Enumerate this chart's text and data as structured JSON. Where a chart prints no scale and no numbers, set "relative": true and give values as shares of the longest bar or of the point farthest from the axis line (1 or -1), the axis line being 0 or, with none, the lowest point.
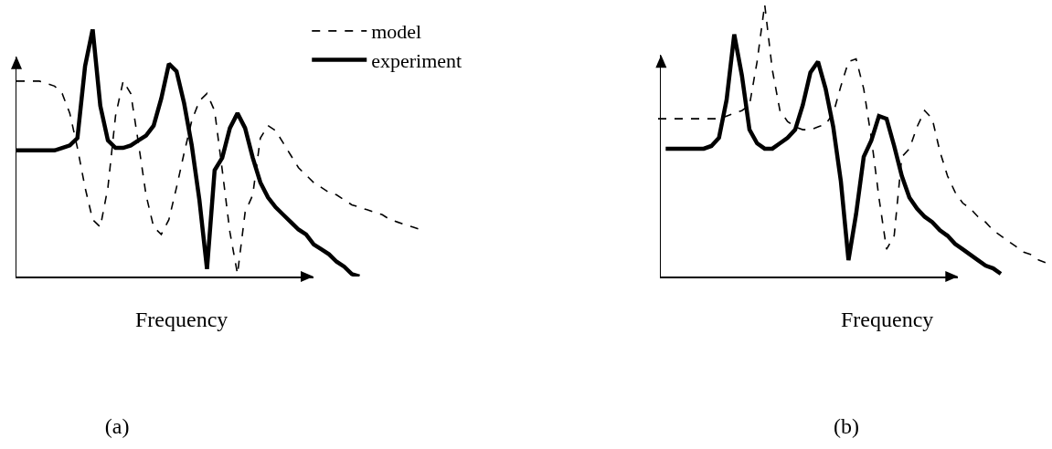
{
  "chart_data": [
    {
      "type": "line",
      "relative": true,
      "title": "(a)",
      "xlabel": "Frequency",
      "legend": "top right",
      "marker": "none",
      "categories": [
        null,
        null,
        null,
        null,
        null,
        null,
        null,
        null,
        null,
        null,
        null,
        null,
        null,
        null,
        null,
        null,
        null,
        null,
        null,
        null,
        null,
        null,
        null,
        null,
        null,
        null,
        null,
        null,
        null,
        null,
        null,
        null,
        null,
        null,
        null,
        null,
        null,
        null,
        null,
        null,
        null,
        null,
        null,
        null,
        null,
        null,
        null,
        null,
        null,
        null,
        null,
        null,
        null,
        null
      ],
      "series": [
        {
          "name": "model",
          "color": "#000000",
          "line_style": "dashed",
          "values": [
            0.79,
            0.79,
            0.79,
            0.79,
            0.78,
            0.77,
            0.74,
            0.66,
            0.52,
            0.36,
            0.23,
            0.2,
            0.36,
            0.65,
            0.79,
            0.74,
            0.54,
            0.33,
            0.2,
            0.17,
            0.23,
            0.36,
            0.5,
            0.63,
            0.71,
            0.74,
            0.67,
            0.43,
            0.18,
            0.01,
            0.26,
            0.33,
            0.56,
            0.61,
            0.59,
            0.54,
            0.49,
            0.44,
            0.41,
            0.38,
            0.36,
            0.34,
            0.33,
            0.31,
            0.29,
            0.28,
            0.27,
            0.26,
            0.25,
            0.23,
            0.22,
            0.21,
            0.2,
            0.19
          ]
        },
        {
          "name": "experiment",
          "color": "#000000",
          "line_style": "solid",
          "values": [
            0.51,
            0.51,
            0.51,
            0.51,
            0.51,
            0.51,
            0.52,
            0.53,
            0.56,
            0.85,
            1.0,
            0.69,
            0.55,
            0.52,
            0.52,
            0.53,
            0.55,
            0.57,
            0.61,
            0.72,
            0.86,
            0.83,
            0.7,
            0.53,
            0.31,
            0.03,
            0.43,
            0.48,
            0.6,
            0.66,
            0.6,
            0.48,
            0.38,
            0.32,
            0.28,
            0.25,
            0.22,
            0.19,
            0.17,
            0.13,
            0.11,
            0.09,
            0.06,
            0.04,
            0.01,
            0.0,
            null,
            null,
            null,
            null,
            null,
            null,
            null,
            null
          ]
        }
      ]
    },
    {
      "type": "line",
      "relative": true,
      "title": "(b)",
      "xlabel": "Frequency",
      "marker": "none",
      "categories": [
        null,
        null,
        null,
        null,
        null,
        null,
        null,
        null,
        null,
        null,
        null,
        null,
        null,
        null,
        null,
        null,
        null,
        null,
        null,
        null,
        null,
        null,
        null,
        null,
        null,
        null,
        null,
        null,
        null,
        null,
        null,
        null,
        null,
        null,
        null,
        null,
        null,
        null,
        null,
        null,
        null,
        null,
        null,
        null,
        null,
        null,
        null,
        null,
        null,
        null,
        null,
        null
      ],
      "series": [
        {
          "color": "#000000",
          "line_style": "dashed",
          "values": [
            0.58,
            0.58,
            0.58,
            0.58,
            0.58,
            0.58,
            0.58,
            0.58,
            0.58,
            0.59,
            0.6,
            0.61,
            0.63,
            0.79,
            1.0,
            0.76,
            0.61,
            0.57,
            0.55,
            0.54,
            0.54,
            0.55,
            0.56,
            0.6,
            0.7,
            0.79,
            0.8,
            0.69,
            0.51,
            0.29,
            0.1,
            0.15,
            0.44,
            0.47,
            0.55,
            0.61,
            0.58,
            0.46,
            0.37,
            0.31,
            0.27,
            0.25,
            0.22,
            0.2,
            0.17,
            0.15,
            0.13,
            0.11,
            0.09,
            0.08,
            0.06,
            0.05
          ]
        },
        {
          "color": "#000000",
          "line_style": "solid",
          "values": [
            null,
            0.47,
            0.47,
            0.47,
            0.47,
            0.47,
            0.47,
            0.48,
            0.51,
            0.65,
            0.89,
            0.74,
            0.54,
            0.49,
            0.47,
            0.47,
            0.49,
            0.51,
            0.54,
            0.63,
            0.75,
            0.79,
            0.69,
            0.55,
            0.35,
            0.06,
            0.23,
            0.44,
            0.5,
            0.59,
            0.58,
            0.48,
            0.37,
            0.29,
            0.25,
            0.22,
            0.2,
            0.17,
            0.15,
            0.12,
            0.1,
            0.08,
            0.06,
            0.04,
            0.03,
            0.01,
            null,
            null,
            null,
            null,
            null,
            null
          ]
        }
      ]
    }
  ]
}
